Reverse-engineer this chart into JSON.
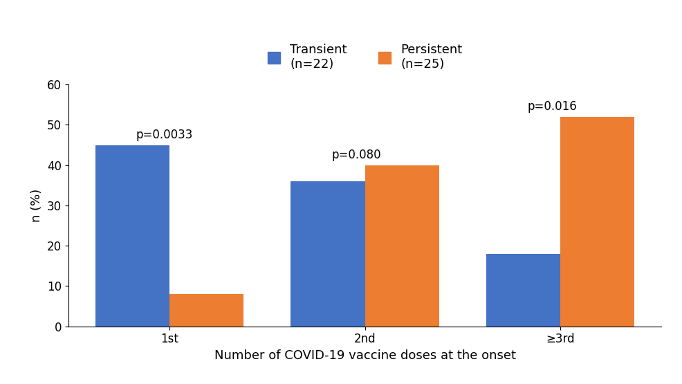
{
  "categories": [
    "1st",
    "2nd",
    "≥3rd"
  ],
  "transient_values": [
    45,
    36,
    18
  ],
  "persistent_values": [
    8,
    40,
    52
  ],
  "transient_color": "#4472C4",
  "persistent_color": "#ED7D31",
  "ylabel": "n (%)",
  "xlabel": "Number of COVID-19 vaccine doses at the onset",
  "ylim": [
    0,
    60
  ],
  "yticks": [
    0,
    10,
    20,
    30,
    40,
    50,
    60
  ],
  "p_values": [
    "p=0.0033",
    "p=0.080",
    "p=0.016"
  ],
  "bar_width": 0.38,
  "background_color": "#ffffff",
  "axis_fontsize": 13,
  "tick_fontsize": 12,
  "legend_fontsize": 13,
  "pvalue_fontsize": 12
}
